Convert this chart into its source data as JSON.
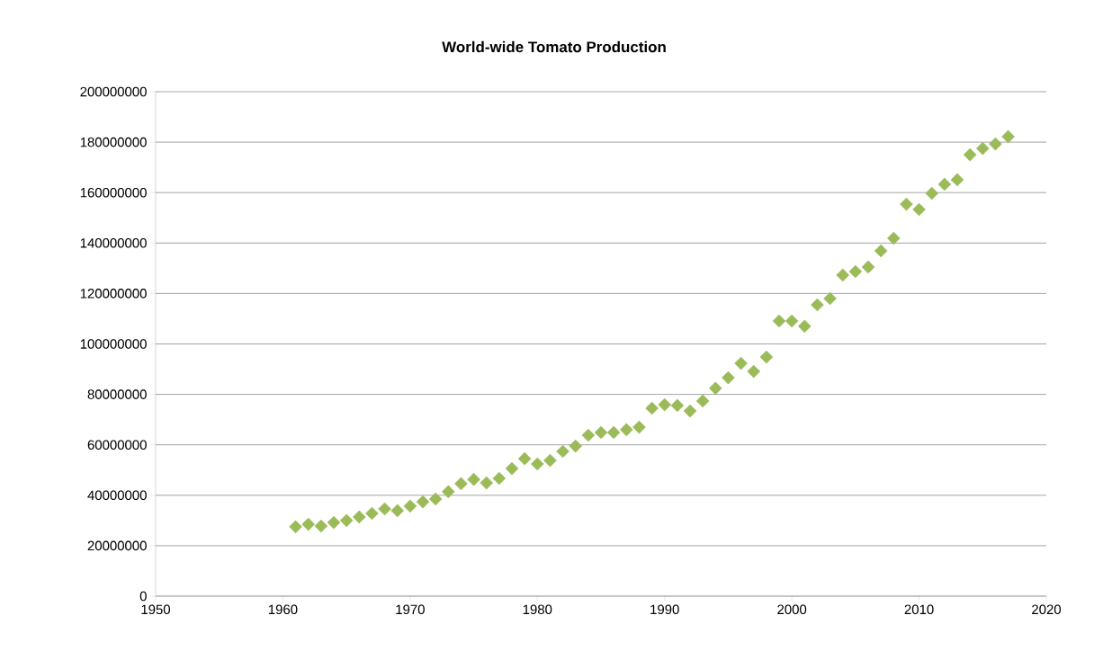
{
  "chart_data": {
    "type": "scatter",
    "title": "World-wide Tomato Production",
    "x": [
      1961,
      1962,
      1963,
      1964,
      1965,
      1966,
      1967,
      1968,
      1969,
      1970,
      1971,
      1972,
      1973,
      1974,
      1975,
      1976,
      1977,
      1978,
      1979,
      1980,
      1981,
      1982,
      1983,
      1984,
      1985,
      1986,
      1987,
      1988,
      1989,
      1990,
      1991,
      1992,
      1993,
      1994,
      1995,
      1996,
      1997,
      1998,
      1999,
      2000,
      2001,
      2002,
      2003,
      2004,
      2005,
      2006,
      2007,
      2008,
      2009,
      2010,
      2011,
      2012,
      2013,
      2014,
      2015,
      2016,
      2017
    ],
    "series": [
      {
        "color": "#9bbb59",
        "values": [
          27500000,
          28500000,
          27800000,
          29200000,
          30000000,
          31400000,
          32800000,
          34600000,
          33900000,
          35700000,
          37400000,
          38500000,
          41400000,
          44600000,
          46300000,
          44900000,
          46700000,
          50600000,
          54500000,
          52400000,
          53800000,
          57400000,
          59500000,
          63800000,
          64900000,
          64900000,
          66000000,
          67000000,
          74500000,
          75900000,
          75600000,
          73400000,
          77400000,
          82400000,
          86600000,
          92300000,
          89100000,
          94800000,
          109100000,
          109100000,
          107000000,
          115500000,
          118000000,
          127300000,
          128700000,
          130500000,
          136900000,
          141900000,
          155400000,
          153300000,
          159700000,
          163300000,
          165100000,
          175000000,
          177500000,
          179300000,
          182200000
        ]
      }
    ],
    "xlim": [
      1950,
      2020
    ],
    "xticks": [
      1950,
      1960,
      1970,
      1980,
      1990,
      2000,
      2010,
      2020
    ],
    "ylim": [
      0,
      200000000
    ],
    "yticks": [
      0,
      20000000,
      40000000,
      60000000,
      80000000,
      100000000,
      120000000,
      140000000,
      160000000,
      180000000,
      200000000
    ],
    "grid": "y",
    "marker": "diamond"
  }
}
